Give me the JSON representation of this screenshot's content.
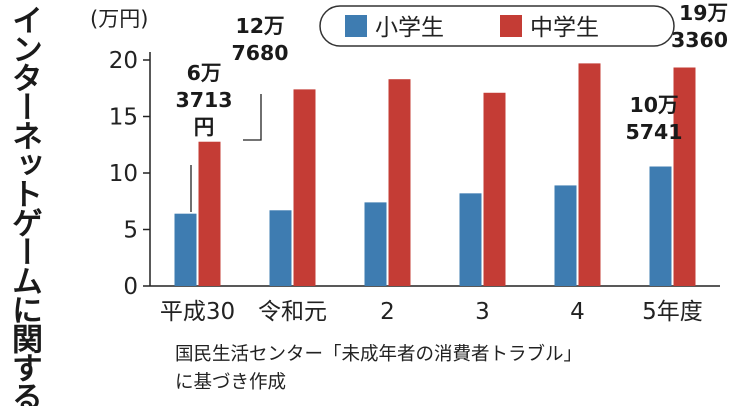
{
  "vertical_title": "インターネットゲームに関する相談の平均支払額",
  "source_note": {
    "line1": "国民生活センター「未成年者の消費者トラブル」",
    "line2": "に基づき作成"
  },
  "colors": {
    "elementary": "#3e7cb1",
    "junior_high": "#c43c35",
    "axis": "#222222"
  },
  "chart_data": {
    "type": "bar",
    "unit_label": "(万円)",
    "ylim": [
      0,
      20
    ],
    "yticks": [
      0,
      5,
      10,
      15,
      20
    ],
    "categories": [
      "平成30",
      "令和元",
      "2",
      "3",
      "4",
      "5年度"
    ],
    "series": [
      {
        "name": "小学生",
        "values": [
          6.4,
          6.7,
          7.4,
          8.2,
          8.9,
          10.5741
        ]
      },
      {
        "name": "中学生",
        "values": [
          12.768,
          17.4,
          18.3,
          17.1,
          19.7,
          19.336
        ]
      }
    ],
    "legend_position": "top",
    "annotations": [
      {
        "series": 0,
        "index": 0,
        "lines": [
          "6万",
          "3713",
          "円"
        ]
      },
      {
        "series": 1,
        "index": 0,
        "lines": [
          "12万",
          "7680"
        ]
      },
      {
        "series": 0,
        "index": 5,
        "lines": [
          "10万",
          "5741"
        ]
      },
      {
        "series": 1,
        "index": 5,
        "lines": [
          "19万",
          "3360"
        ]
      }
    ]
  }
}
